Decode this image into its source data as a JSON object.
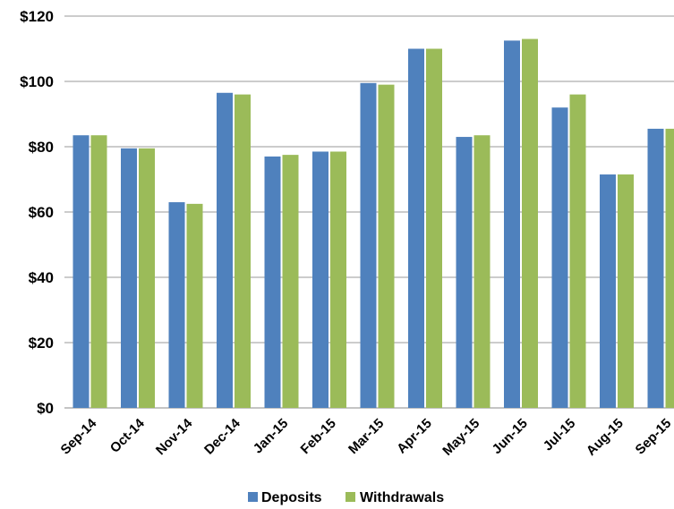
{
  "chart_data": {
    "type": "bar",
    "title": "",
    "xlabel": "",
    "ylabel": "",
    "categories": [
      "Sep-14",
      "Oct-14",
      "Nov-14",
      "Dec-14",
      "Jan-15",
      "Feb-15",
      "Mar-15",
      "Apr-15",
      "May-15",
      "Jun-15",
      "Jul-15",
      "Aug-15",
      "Sep-15"
    ],
    "series": [
      {
        "name": "Deposits",
        "color": "#4F81BD",
        "values": [
          83.5,
          79.5,
          63,
          96.5,
          77,
          78.5,
          99.5,
          110,
          83,
          112.5,
          92,
          71.5,
          85.5
        ]
      },
      {
        "name": "Withdrawals",
        "color": "#9BBB59",
        "values": [
          83.5,
          79.5,
          62.5,
          96,
          77.5,
          78.5,
          99,
          110,
          83.5,
          113,
          96,
          71.5,
          85.5
        ]
      }
    ],
    "ylim": [
      0,
      120
    ],
    "yticks": [
      0,
      20,
      40,
      60,
      80,
      100,
      120
    ],
    "ytick_labels": [
      "$0",
      "$20",
      "$40",
      "$60",
      "$80",
      "$100",
      "$120"
    ],
    "grid": true,
    "legend_position": "bottom"
  }
}
